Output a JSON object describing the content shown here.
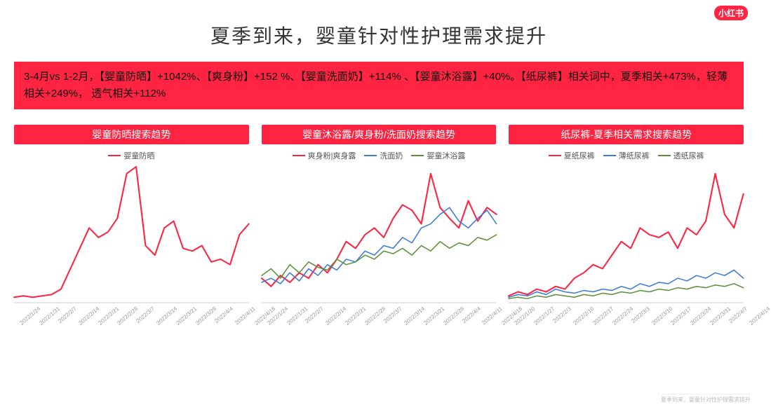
{
  "brand_logo_text": "小红书",
  "page_title": "夏季到来，婴童针对性护理需求提升",
  "banner_text": "3-4月vs 1-2月，【婴童防晒】+1042%、【爽身粉】+152 %、【婴童洗面奶】+114% 、【婴童沐浴露】+40%。【纸尿裤】相关词中，夏季相关+473%，轻薄相关+249%， 透气相关+112%",
  "colors": {
    "accent": "#ff2442",
    "axis": "#cccccc",
    "text_muted": "#999999",
    "red": "#ff2442",
    "blue": "#3b7ad9",
    "green": "#5a8f3a"
  },
  "charts": [
    {
      "title": "婴童防晒搜索趋势",
      "x_labels": [
        "2022/1/24",
        "2022/1/31",
        "2022/2/7",
        "2022/2/14",
        "2022/2/21",
        "2022/2/28",
        "2022/3/7",
        "2022/3/14",
        "2022/3/21",
        "2022/3/28",
        "2022/4/4",
        "2022/4/11",
        "2022/4/18"
      ],
      "ymin": 0,
      "ymax": 100,
      "legend": [
        {
          "label": "婴童防晒",
          "color": "#ff2442"
        }
      ],
      "series": [
        {
          "color": "#ff2442",
          "width": 2,
          "values": [
            4,
            5,
            4,
            5,
            6,
            10,
            25,
            40,
            55,
            48,
            52,
            62,
            95,
            100,
            42,
            35,
            55,
            60,
            40,
            38,
            42,
            30,
            32,
            28,
            50,
            58
          ]
        }
      ]
    },
    {
      "title": "婴童沐浴露/爽身粉/洗面奶搜索趋势",
      "x_labels": [
        "2022/1/24",
        "2022/1/31",
        "2022/2/7",
        "2022/2/14",
        "2022/2/21",
        "2022/2/28",
        "2022/3/7",
        "2022/3/14",
        "2022/3/21",
        "2022/3/28",
        "2022/4/4",
        "2022/4/11",
        "2022/4/18"
      ],
      "ymin": 0,
      "ymax": 100,
      "legend": [
        {
          "label": "爽身粉|爽身露",
          "color": "#ff2442"
        },
        {
          "label": "洗面奶",
          "color": "#3b7ad9"
        },
        {
          "label": "婴童沐浴露",
          "color": "#5a8f3a"
        }
      ],
      "series": [
        {
          "color": "#ff2442",
          "width": 2,
          "values": [
            18,
            12,
            20,
            15,
            22,
            18,
            28,
            22,
            32,
            45,
            40,
            50,
            55,
            48,
            62,
            72,
            68,
            58,
            95,
            70,
            62,
            55,
            75,
            60,
            70,
            65
          ]
        },
        {
          "color": "#3b7ad9",
          "width": 1.5,
          "values": [
            15,
            18,
            14,
            22,
            16,
            25,
            20,
            28,
            24,
            32,
            30,
            38,
            35,
            42,
            40,
            48,
            44,
            55,
            58,
            65,
            70,
            60,
            55,
            62,
            68,
            58
          ]
        },
        {
          "color": "#5a8f3a",
          "width": 1.5,
          "values": [
            20,
            25,
            18,
            28,
            22,
            30,
            26,
            24,
            32,
            28,
            30,
            35,
            32,
            38,
            36,
            40,
            35,
            42,
            38,
            45,
            40,
            44,
            42,
            48,
            46,
            50
          ]
        }
      ]
    },
    {
      "title": "纸尿裤-夏季相关需求搜索趋势",
      "x_labels": [
        "2022/1/20",
        "2022/1/27",
        "2022/2/3",
        "2022/2/10",
        "2022/2/17",
        "2022/2/24",
        "2022/3/3",
        "2022/3/10",
        "2022/3/17",
        "2022/3/24",
        "2022/3/31",
        "2022/4/7",
        "2022/4/14"
      ],
      "ymin": 0,
      "ymax": 100,
      "legend": [
        {
          "label": "夏纸尿裤",
          "color": "#ff2442"
        },
        {
          "label": "薄纸尿裤",
          "color": "#3b7ad9"
        },
        {
          "label": "透纸尿裤",
          "color": "#5a8f3a"
        }
      ],
      "series": [
        {
          "color": "#ff2442",
          "width": 2,
          "values": [
            5,
            8,
            6,
            10,
            8,
            12,
            10,
            18,
            22,
            28,
            25,
            35,
            45,
            40,
            55,
            50,
            48,
            52,
            40,
            55,
            50,
            60,
            95,
            65,
            55,
            80
          ]
        },
        {
          "color": "#3b7ad9",
          "width": 1.5,
          "values": [
            4,
            6,
            5,
            8,
            6,
            10,
            8,
            7,
            9,
            8,
            10,
            9,
            12,
            10,
            14,
            12,
            15,
            14,
            18,
            16,
            20,
            18,
            22,
            20,
            24,
            18
          ]
        },
        {
          "color": "#5a8f3a",
          "width": 1.5,
          "values": [
            3,
            4,
            3,
            5,
            4,
            6,
            5,
            4,
            6,
            5,
            7,
            6,
            8,
            7,
            9,
            8,
            10,
            9,
            11,
            10,
            12,
            11,
            13,
            12,
            14,
            11
          ]
        }
      ]
    }
  ],
  "footer_caption": "夏季到来，婴童针对性护理需求提升"
}
